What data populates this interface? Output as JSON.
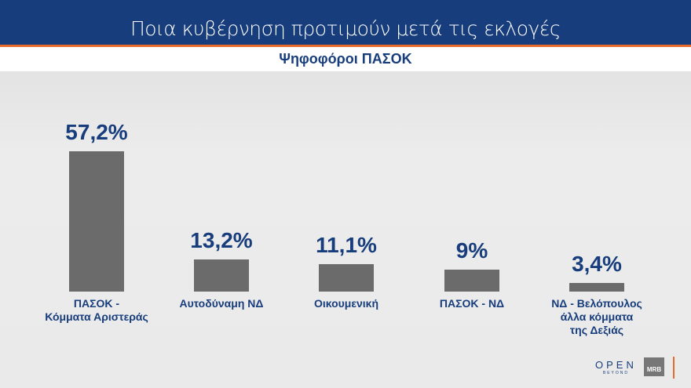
{
  "header": {
    "title": "Ποια κυβέρνηση προτιμούν μετά τις εκλογές",
    "subtitle": "Ψηφοφόροι ΠΑΣΟΚ"
  },
  "chart_data": {
    "type": "bar",
    "title": "Ψηφοφόροι ΠΑΣΟΚ",
    "categories": [
      "ΠΑΣΟΚ -\nΚόμματα Αριστεράς",
      "Αυτοδύναμη ΝΔ",
      "Οικουμενική",
      "ΠΑΣΟΚ - ΝΔ",
      "ΝΔ - Βελόπουλος\nάλλα κόμματα\nτης Δεξιάς"
    ],
    "values": [
      57.2,
      13.2,
      11.1,
      9,
      3.4
    ],
    "labels": [
      "57,2%",
      "13,2%",
      "11,1%",
      "9%",
      "3,4%"
    ],
    "ylim": [
      0,
      60
    ],
    "grid": false,
    "bar_color": "#6b6b6b",
    "label_color": "#173d7c"
  },
  "logos": {
    "open": "OPEN",
    "open_sub": "BEYOND",
    "mrb": "MRB"
  }
}
